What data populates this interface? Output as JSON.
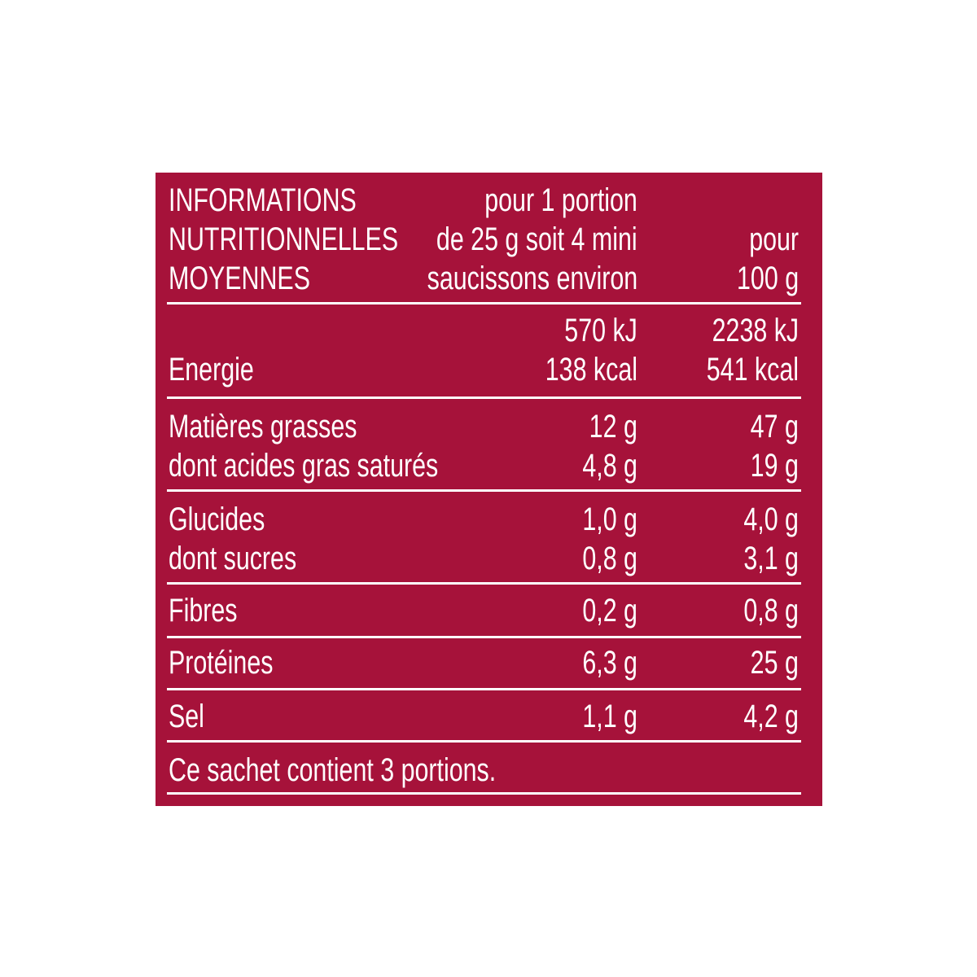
{
  "header": {
    "title": [
      "INFORMATIONS",
      "NUTRITIONNELLES",
      "MOYENNES"
    ],
    "portion": [
      "pour 1 portion",
      "de 25 g soit 4 mini",
      "saucissons environ"
    ],
    "per_100g": [
      "pour",
      "100 g"
    ]
  },
  "rows": [
    {
      "label": [
        "Energie"
      ],
      "portion": [
        "570 kJ",
        "138 kcal"
      ],
      "per_100g": [
        "2238 kJ",
        "541 kcal"
      ]
    },
    {
      "label": [
        "Matières grasses",
        "dont acides gras saturés"
      ],
      "portion": [
        "12 g",
        "4,8 g"
      ],
      "per_100g": [
        "47 g",
        "19 g"
      ]
    },
    {
      "label": [
        "Glucides",
        "dont sucres"
      ],
      "portion": [
        "1,0 g",
        "0,8 g"
      ],
      "per_100g": [
        "4,0 g",
        "3,1 g"
      ]
    },
    {
      "label": [
        "Fibres"
      ],
      "portion": [
        "0,2 g"
      ],
      "per_100g": [
        "0,8 g"
      ]
    },
    {
      "label": [
        "Protéines"
      ],
      "portion": [
        "6,3 g"
      ],
      "per_100g": [
        "25 g"
      ]
    },
    {
      "label": [
        "Sel"
      ],
      "portion": [
        "1,1 g"
      ],
      "per_100g": [
        "4,2 g"
      ]
    }
  ],
  "footer": "Ce sachet contient 3 portions."
}
